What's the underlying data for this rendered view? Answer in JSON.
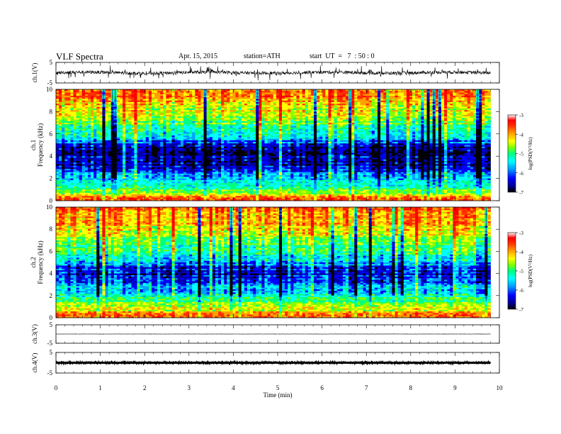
{
  "header": {
    "title": "VLF Spectra",
    "date": "Apr. 15, 2015",
    "station": "station=ATH",
    "start": "start  UT  =   7  : 50 : 0"
  },
  "chart_data": [
    {
      "type": "line",
      "panel": "ch1-waveform",
      "ylabel": "ch.1(V)",
      "ylim": [
        -5,
        5
      ],
      "yticks": [
        "5",
        "-5"
      ],
      "xlim": [
        0,
        10
      ],
      "data_extent_min": [
        0,
        9.8
      ],
      "baseline_v": 0,
      "amplitude_note": "noisy",
      "color": "#000000"
    },
    {
      "type": "heatmap",
      "panel": "ch1-spectrogram",
      "ylabel_ch": "ch.1",
      "ylabel": "Frequency  (kHz)",
      "ylim": [
        0,
        10
      ],
      "yticks": [
        "0",
        "2",
        "4",
        "6",
        "8",
        "10"
      ],
      "xlim": [
        0,
        10
      ],
      "data_extent_min": [
        0,
        9.8
      ],
      "colorbar": {
        "label": "log(PSD(V²/Hz)",
        "range": [
          -7,
          -3
        ],
        "ticks": [
          "-3",
          "-4",
          "-5",
          "-6",
          "-7"
        ]
      },
      "freq_profile_khz": [
        0,
        0.5,
        1,
        1.5,
        2,
        2.5,
        3,
        3.5,
        4,
        4.5,
        5,
        5.5,
        6,
        6.5,
        7,
        7.5,
        8,
        8.5,
        9,
        9.5,
        10
      ],
      "logpsd_profile": [
        -3.5,
        -4.2,
        -4.9,
        -5.2,
        -5.5,
        -5.9,
        -6.3,
        -6.5,
        -6.5,
        -6.4,
        -6.2,
        -5.6,
        -5.2,
        -5.0,
        -4.8,
        -4.6,
        -4.4,
        -4.2,
        -4.0,
        -3.9,
        -3.8
      ]
    },
    {
      "type": "heatmap",
      "panel": "ch2-spectrogram",
      "ylabel_ch": "ch.2",
      "ylabel": "Frequency  (kHz)",
      "ylim": [
        0,
        10
      ],
      "yticks": [
        "0",
        "2",
        "4",
        "6",
        "8",
        "10"
      ],
      "xlim": [
        0,
        10
      ],
      "data_extent_min": [
        0,
        9.8
      ],
      "colorbar": {
        "label": "log(PSD(V²/Hz)",
        "range": [
          -7,
          -3
        ],
        "ticks": [
          "-3",
          "-4",
          "-5",
          "-6",
          "-7"
        ]
      },
      "freq_profile_khz": [
        0,
        0.5,
        1,
        1.5,
        2,
        2.5,
        3,
        3.5,
        4,
        4.5,
        5,
        5.5,
        6,
        6.5,
        7,
        7.5,
        8,
        8.5,
        9,
        9.5,
        10
      ],
      "logpsd_profile": [
        -3.6,
        -4.1,
        -4.6,
        -4.9,
        -5.2,
        -5.5,
        -5.8,
        -6.1,
        -6.2,
        -6.0,
        -5.6,
        -5.3,
        -5.0,
        -4.8,
        -4.6,
        -4.4,
        -4.2,
        -4.0,
        -3.9,
        -3.8,
        -3.7
      ]
    },
    {
      "type": "line",
      "panel": "ch3-waveform",
      "ylabel": "ch.3(V)",
      "ylim": [
        -5,
        5
      ],
      "yticks": [
        "5",
        "-5"
      ],
      "xlim": [
        0,
        10
      ],
      "data_extent_min": [
        0,
        9.8
      ],
      "baseline_v": 0,
      "color": "#000000"
    },
    {
      "type": "line",
      "panel": "ch4-waveform",
      "ylabel": "ch.4(V)",
      "ylim": [
        -5,
        5
      ],
      "yticks": [
        "5",
        "-5"
      ],
      "xlim": [
        0,
        10
      ],
      "data_extent_min": [
        0,
        9.8
      ],
      "baseline_v": 0,
      "color": "#000000"
    }
  ],
  "xaxis": {
    "label": "Time  (min)",
    "ticks": [
      "0",
      "1",
      "2",
      "3",
      "4",
      "5",
      "6",
      "7",
      "8",
      "9",
      "10"
    ]
  },
  "colormap": [
    "#000000",
    "#0000a0",
    "#0000ff",
    "#00a0ff",
    "#00ffff",
    "#00ff80",
    "#80ff00",
    "#ffff00",
    "#ffa000",
    "#ff3000",
    "#ff0000",
    "#ffffff"
  ]
}
